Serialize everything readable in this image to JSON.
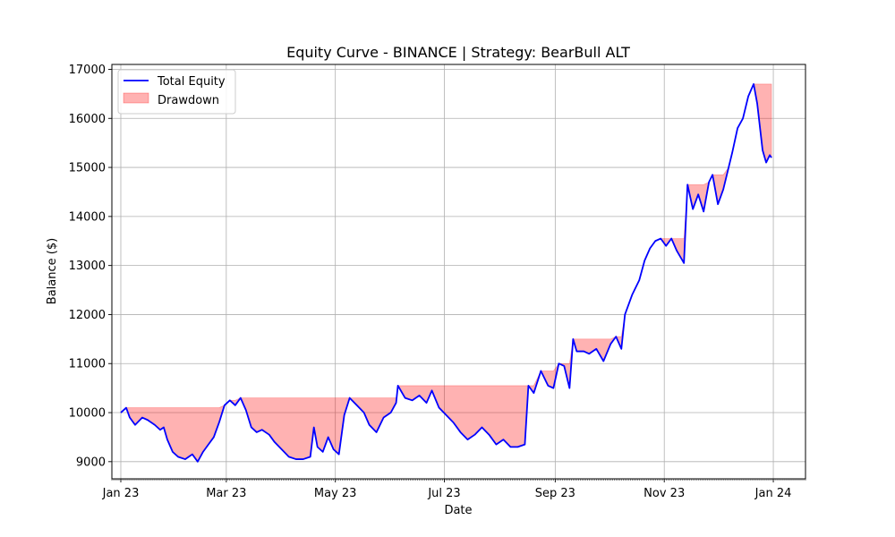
{
  "chart_data": {
    "type": "area",
    "title": "Equity Curve - BINANCE | Strategy: BearBull ALT",
    "xlabel": "Date",
    "ylabel": "Balance ($)",
    "xlim": [
      "2022-12-27",
      "2024-01-19"
    ],
    "ylim": [
      8650,
      17100
    ],
    "grid": true,
    "legend_position": "upper-left",
    "x_ticks": [
      {
        "date": "2023-01-01",
        "label": "Jan 23"
      },
      {
        "date": "2023-03-01",
        "label": "Mar 23"
      },
      {
        "date": "2023-05-01",
        "label": "May 23"
      },
      {
        "date": "2023-07-01",
        "label": "Jul 23"
      },
      {
        "date": "2023-09-01",
        "label": "Sep 23"
      },
      {
        "date": "2023-11-01",
        "label": "Nov 23"
      },
      {
        "date": "2024-01-01",
        "label": "Jan 24"
      }
    ],
    "y_ticks": [
      9000,
      10000,
      11000,
      12000,
      13000,
      14000,
      15000,
      16000,
      17000
    ],
    "series": [
      {
        "name": "Total Equity",
        "kind": "line",
        "color": "#0000ff",
        "points": [
          [
            "2023-01-01",
            10000
          ],
          [
            "2023-01-04",
            10100
          ],
          [
            "2023-01-06",
            9900
          ],
          [
            "2023-01-09",
            9750
          ],
          [
            "2023-01-13",
            9900
          ],
          [
            "2023-01-16",
            9850
          ],
          [
            "2023-01-20",
            9750
          ],
          [
            "2023-01-23",
            9650
          ],
          [
            "2023-01-25",
            9700
          ],
          [
            "2023-01-27",
            9450
          ],
          [
            "2023-01-30",
            9200
          ],
          [
            "2023-02-02",
            9100
          ],
          [
            "2023-02-06",
            9050
          ],
          [
            "2023-02-10",
            9150
          ],
          [
            "2023-02-13",
            9000
          ],
          [
            "2023-02-16",
            9200
          ],
          [
            "2023-02-19",
            9350
          ],
          [
            "2023-02-22",
            9500
          ],
          [
            "2023-02-25",
            9800
          ],
          [
            "2023-02-28",
            10150
          ],
          [
            "2023-03-03",
            10250
          ],
          [
            "2023-03-06",
            10150
          ],
          [
            "2023-03-09",
            10300
          ],
          [
            "2023-03-12",
            10050
          ],
          [
            "2023-03-15",
            9700
          ],
          [
            "2023-03-18",
            9600
          ],
          [
            "2023-03-21",
            9650
          ],
          [
            "2023-03-25",
            9550
          ],
          [
            "2023-03-28",
            9400
          ],
          [
            "2023-04-01",
            9250
          ],
          [
            "2023-04-05",
            9100
          ],
          [
            "2023-04-09",
            9050
          ],
          [
            "2023-04-13",
            9050
          ],
          [
            "2023-04-17",
            9100
          ],
          [
            "2023-04-19",
            9700
          ],
          [
            "2023-04-21",
            9300
          ],
          [
            "2023-04-24",
            9200
          ],
          [
            "2023-04-27",
            9500
          ],
          [
            "2023-04-30",
            9250
          ],
          [
            "2023-05-03",
            9150
          ],
          [
            "2023-05-06",
            9950
          ],
          [
            "2023-05-09",
            10300
          ],
          [
            "2023-05-13",
            10150
          ],
          [
            "2023-05-17",
            10000
          ],
          [
            "2023-05-20",
            9750
          ],
          [
            "2023-05-24",
            9600
          ],
          [
            "2023-05-28",
            9900
          ],
          [
            "2023-06-01",
            10000
          ],
          [
            "2023-06-04",
            10200
          ],
          [
            "2023-06-05",
            10550
          ],
          [
            "2023-06-09",
            10300
          ],
          [
            "2023-06-13",
            10250
          ],
          [
            "2023-06-17",
            10350
          ],
          [
            "2023-06-21",
            10200
          ],
          [
            "2023-06-24",
            10450
          ],
          [
            "2023-06-28",
            10100
          ],
          [
            "2023-07-02",
            9950
          ],
          [
            "2023-07-06",
            9800
          ],
          [
            "2023-07-10",
            9600
          ],
          [
            "2023-07-14",
            9450
          ],
          [
            "2023-07-18",
            9550
          ],
          [
            "2023-07-22",
            9700
          ],
          [
            "2023-07-26",
            9550
          ],
          [
            "2023-07-30",
            9350
          ],
          [
            "2023-08-03",
            9450
          ],
          [
            "2023-08-07",
            9300
          ],
          [
            "2023-08-11",
            9300
          ],
          [
            "2023-08-15",
            9350
          ],
          [
            "2023-08-17",
            10550
          ],
          [
            "2023-08-20",
            10400
          ],
          [
            "2023-08-24",
            10850
          ],
          [
            "2023-08-28",
            10550
          ],
          [
            "2023-08-31",
            10500
          ],
          [
            "2023-09-03",
            11000
          ],
          [
            "2023-09-06",
            10950
          ],
          [
            "2023-09-09",
            10500
          ],
          [
            "2023-09-11",
            11500
          ],
          [
            "2023-09-13",
            11250
          ],
          [
            "2023-09-17",
            11250
          ],
          [
            "2023-09-20",
            11200
          ],
          [
            "2023-09-24",
            11300
          ],
          [
            "2023-09-28",
            11050
          ],
          [
            "2023-10-02",
            11400
          ],
          [
            "2023-10-05",
            11550
          ],
          [
            "2023-10-08",
            11300
          ],
          [
            "2023-10-10",
            12000
          ],
          [
            "2023-10-14",
            12400
          ],
          [
            "2023-10-18",
            12700
          ],
          [
            "2023-10-21",
            13100
          ],
          [
            "2023-10-24",
            13350
          ],
          [
            "2023-10-27",
            13500
          ],
          [
            "2023-10-30",
            13550
          ],
          [
            "2023-11-02",
            13400
          ],
          [
            "2023-11-05",
            13550
          ],
          [
            "2023-11-08",
            13300
          ],
          [
            "2023-11-12",
            13050
          ],
          [
            "2023-11-14",
            14650
          ],
          [
            "2023-11-17",
            14150
          ],
          [
            "2023-11-20",
            14450
          ],
          [
            "2023-11-23",
            14100
          ],
          [
            "2023-11-26",
            14700
          ],
          [
            "2023-11-28",
            14850
          ],
          [
            "2023-12-01",
            14250
          ],
          [
            "2023-12-04",
            14550
          ],
          [
            "2023-12-07",
            15000
          ],
          [
            "2023-12-09",
            15300
          ],
          [
            "2023-12-12",
            15800
          ],
          [
            "2023-12-15",
            16000
          ],
          [
            "2023-12-18",
            16450
          ],
          [
            "2023-12-21",
            16700
          ],
          [
            "2023-12-23",
            16300
          ],
          [
            "2023-12-26",
            15350
          ],
          [
            "2023-12-28",
            15100
          ],
          [
            "2023-12-30",
            15250
          ],
          [
            "2023-12-31",
            15200
          ]
        ]
      },
      {
        "name": "Drawdown",
        "kind": "fill_between_peak_and_equity",
        "color": "#ff0000",
        "opacity": 0.3
      }
    ]
  }
}
